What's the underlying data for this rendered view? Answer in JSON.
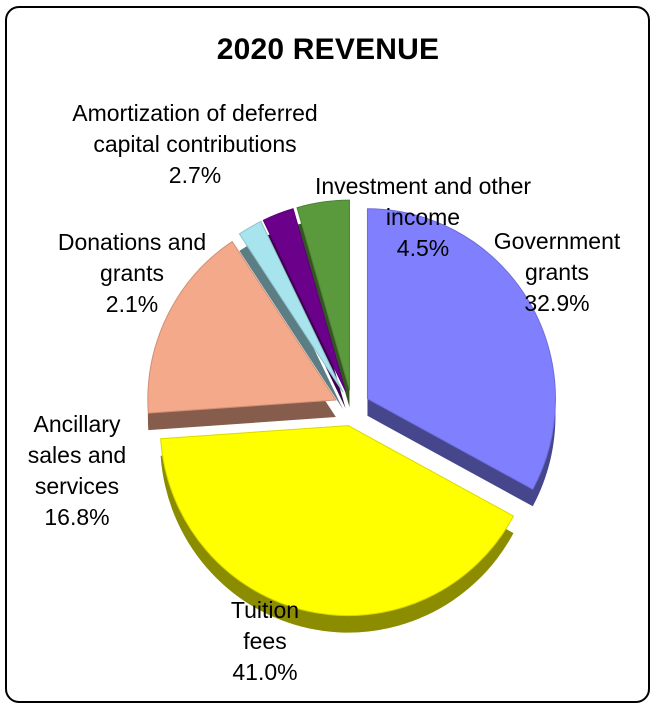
{
  "chart_data": {
    "type": "pie",
    "title": "2020 REVENUE",
    "slices": [
      {
        "label_lines": [
          "Government",
          "grants"
        ],
        "value": 32.9,
        "value_label": "32.9%",
        "color": "#8080ff"
      },
      {
        "label_lines": [
          "Tuition",
          "fees"
        ],
        "value": 41.0,
        "value_label": "41.0%",
        "color": "#ffff00"
      },
      {
        "label_lines": [
          "Ancillary",
          "sales and",
          "services"
        ],
        "value": 16.8,
        "value_label": "16.8%",
        "color": "#f4a98a"
      },
      {
        "label_lines": [
          "Donations and",
          "grants"
        ],
        "value": 2.1,
        "value_label": "2.1%",
        "color": "#a8e4ee"
      },
      {
        "label_lines": [
          "Amortization of deferred",
          "capital contributions"
        ],
        "value": 2.7,
        "value_label": "2.7%",
        "color": "#6b008b"
      },
      {
        "label_lines": [
          "Investment and other",
          "income"
        ],
        "value": 4.5,
        "value_label": "4.5%",
        "color": "#5a9a3c"
      }
    ]
  }
}
